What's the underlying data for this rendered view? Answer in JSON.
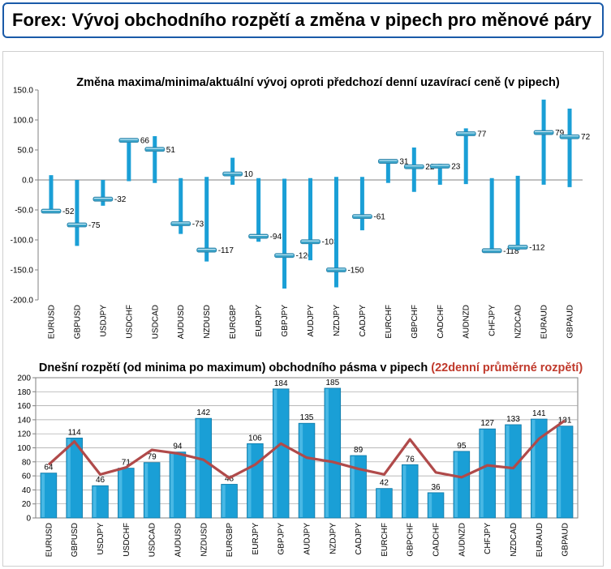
{
  "header": {
    "title": "Forex: Vývoj obchodního rozpětí a změna v pipech pro měnové páry"
  },
  "colors": {
    "accent": "#1a9fd6",
    "marker": "#3aa3c8",
    "line": "#b04a4a",
    "title_red": "#c0392b",
    "header_border": "#1a5aa8"
  },
  "chart_data": [
    {
      "type": "bar",
      "subtype": "high-low-current",
      "title": "Změna maxima/minima/aktuální vývoj oproti předchozí denní uzavírací ceně (v pipech)",
      "categories": [
        "EURUSD",
        "GBPUSD",
        "USDJPY",
        "USDCHF",
        "USDCAD",
        "AUDUSD",
        "NZDUSD",
        "EURGBP",
        "EURJPY",
        "GBPJPY",
        "AUDJPY",
        "NZDJPY",
        "CADJPY",
        "EURCHF",
        "GBPCHF",
        "CADCHF",
        "AUDNZD",
        "CHFJPY",
        "NZDCAD",
        "EURAUD",
        "GBPAUD"
      ],
      "series": [
        {
          "name": "",
          "role": "high",
          "values": [
            8,
            0,
            0,
            67,
            73,
            3,
            5,
            37,
            3,
            2,
            3,
            5,
            5,
            34,
            54,
            27,
            86,
            3,
            7,
            134,
            119
          ]
        },
        {
          "name": "",
          "role": "low",
          "values": [
            -52,
            -110,
            -43,
            -2,
            -5,
            -90,
            -136,
            -8,
            -103,
            -181,
            -134,
            -179,
            -84,
            -5,
            -20,
            -8,
            -7,
            -118,
            -117,
            -8,
            -12
          ]
        },
        {
          "name": "",
          "role": "current",
          "values": [
            -52,
            -75,
            -32,
            66,
            51,
            -73,
            -117,
            10,
            -94,
            -126,
            -103,
            -150,
            -61,
            31,
            22,
            23,
            77,
            -118,
            -112,
            79,
            72
          ]
        }
      ],
      "data_labels": [
        "-52",
        "-75",
        "-32",
        "66",
        "51",
        "-73",
        "-117",
        "10",
        "-94",
        "-126",
        "-103",
        "-150",
        "-61",
        "31",
        "22",
        "23",
        "77",
        "-118",
        "-112",
        "79",
        "72"
      ],
      "ylim": [
        -200,
        150
      ],
      "yticks": [
        "150.0",
        "100.0",
        "50.0",
        "0.0",
        "-50.0",
        "-100.0",
        "-150.0",
        "-200.0"
      ],
      "ytick_values": [
        150,
        100,
        50,
        0,
        -50,
        -100,
        -150,
        -200
      ],
      "grid": false
    },
    {
      "type": "bar",
      "title": "Dnešní rozpětí (od minima po maximum) obchodního pásma v pipech",
      "title_red": "(22denní průměrné rozpětí)",
      "categories": [
        "EURUSD",
        "GBPUSD",
        "USDJPY",
        "USDCHF",
        "USDCAD",
        "AUDUSD",
        "NZDUSD",
        "EURGBP",
        "EURJPY",
        "GBPJPY",
        "AUDJPY",
        "NZDJPY",
        "CADJPY",
        "EURCHF",
        "GBPCHF",
        "CADCHF",
        "AUDNZD",
        "CHFJPY",
        "NZDCAD",
        "EURAUD",
        "GBPAUD"
      ],
      "series": [
        {
          "name": "",
          "kind": "bar",
          "values": [
            64,
            114,
            46,
            71,
            79,
            94,
            142,
            48,
            106,
            184,
            135,
            185,
            89,
            42,
            76,
            36,
            95,
            127,
            133,
            141,
            131
          ]
        },
        {
          "name": "",
          "kind": "line",
          "values": [
            76,
            109,
            62,
            72,
            97,
            92,
            83,
            57,
            76,
            106,
            86,
            80,
            70,
            62,
            112,
            65,
            58,
            75,
            71,
            113,
            139
          ]
        }
      ],
      "data_labels": [
        "64",
        "114",
        "46",
        "71",
        "79",
        "94",
        "142",
        "48",
        "106",
        "184",
        "135",
        "185",
        "89",
        "42",
        "76",
        "36",
        "95",
        "127",
        "133",
        "141",
        "131"
      ],
      "ylim": [
        0,
        200
      ],
      "yticks": [
        "200",
        "180",
        "160",
        "140",
        "120",
        "100",
        "80",
        "60",
        "40",
        "20",
        "0"
      ],
      "ytick_values": [
        200,
        180,
        160,
        140,
        120,
        100,
        80,
        60,
        40,
        20,
        0
      ],
      "grid": true
    }
  ]
}
